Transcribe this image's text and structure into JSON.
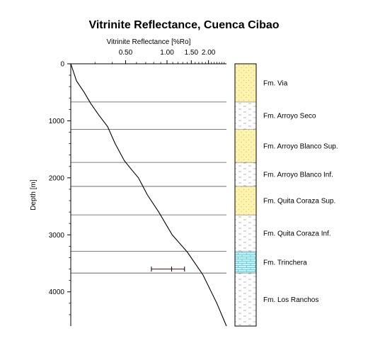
{
  "chart_data": {
    "type": "line",
    "title": "Vitrinite Reflectance, Cuenca Cibao",
    "xlabel": "Vitrinite Reflectance [%Ro]",
    "ylabel": "Depth [m]",
    "x_scale": "log",
    "x_ticks": [
      {
        "value": 0.5,
        "label": "0.50"
      },
      {
        "value": 1.0,
        "label": "1.00"
      },
      {
        "value": 1.5,
        "label": "1.50"
      },
      {
        "value": 2.0,
        "label": "2.00"
      }
    ],
    "y_ticks": [
      {
        "value": 0,
        "label": "0"
      },
      {
        "value": 1000,
        "label": "1000"
      },
      {
        "value": 2000,
        "label": "2000"
      },
      {
        "value": 3000,
        "label": "3000"
      },
      {
        "value": 4000,
        "label": "4000"
      }
    ],
    "xlim": [
      0.2,
      2.7
    ],
    "ylim": [
      0,
      4600
    ],
    "grid": "formation boundaries only",
    "series": [
      {
        "type": "line",
        "color": "#000000",
        "x": [
          0.2,
          0.22,
          0.25,
          0.28,
          0.32,
          0.37,
          0.42,
          0.49,
          0.55,
          0.62,
          0.72,
          0.87,
          1.09,
          1.4,
          1.82,
          2.3,
          2.7
        ],
        "y": [
          0,
          300,
          500,
          700,
          900,
          1100,
          1400,
          1700,
          1850,
          2000,
          2300,
          2600,
          3000,
          3300,
          3700,
          4200,
          4600
        ]
      },
      {
        "type": "errorbar",
        "color": "#7a1f1f",
        "x": 1.08,
        "xerr_low": 0.77,
        "xerr_high": 1.34,
        "y": 3600
      }
    ],
    "formations": [
      {
        "name": "Fm. Via",
        "top": 0,
        "bottom": 670,
        "lithology": "sandstone",
        "fill": "#fff3b0"
      },
      {
        "name": "Fm. Arroyo Seco",
        "top": 670,
        "bottom": 1150,
        "lithology": "shale",
        "fill": "#ffffff"
      },
      {
        "name": "Fm. Arroyo Blanco Sup.",
        "top": 1150,
        "bottom": 1730,
        "lithology": "sandstone",
        "fill": "#fff3b0"
      },
      {
        "name": "Fm. Arroyo Blanco Inf.",
        "top": 1730,
        "bottom": 2150,
        "lithology": "shale",
        "fill": "#ffffff"
      },
      {
        "name": "Fm. Quita Coraza Sup.",
        "top": 2150,
        "bottom": 2650,
        "lithology": "sandstone",
        "fill": "#fff3b0"
      },
      {
        "name": "Fm. Quita Coraza Inf.",
        "top": 2650,
        "bottom": 3290,
        "lithology": "shale",
        "fill": "#ffffff"
      },
      {
        "name": "Fm. Trinchera",
        "top": 3290,
        "bottom": 3670,
        "lithology": "limestone",
        "fill": "#c6f1f6"
      },
      {
        "name": "Fm. Los Ranchos",
        "top": 3670,
        "bottom": 4600,
        "lithology": "shale",
        "fill": "#ffffff"
      }
    ]
  }
}
